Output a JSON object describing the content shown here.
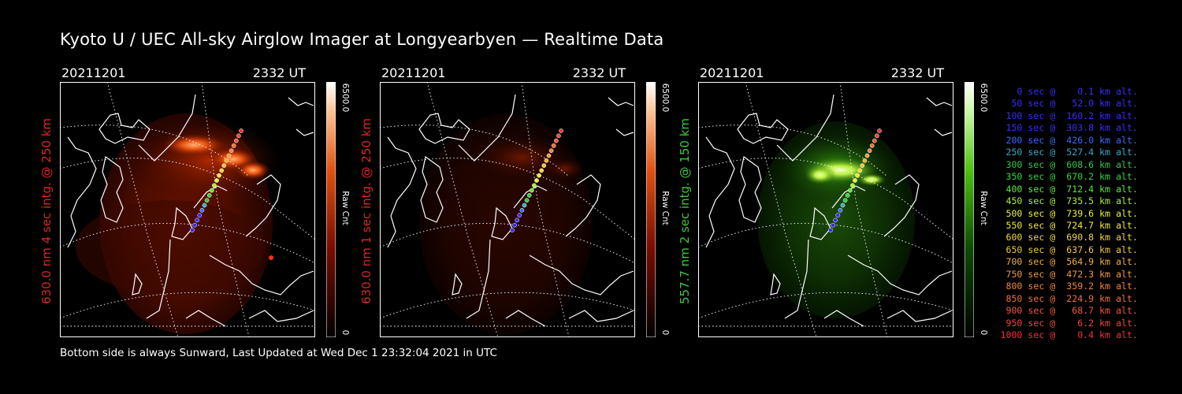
{
  "title": "Kyoto U / UEC All-sky Airglow Imager at Longyearbyen — Realtime Data",
  "footer": "Bottom side is always Sunward, Last Updated at Wed Dec  1 23:32:04 2021 in UTC",
  "panels": [
    {
      "date": "20211201",
      "time": "2332 UT",
      "ylabel": "630.0 nm 4 sec intg. @ 250 km",
      "label_color": "#d8281e",
      "cbar_max": "6500.0",
      "cbar_unit": "Raw Cnt",
      "cbar_min": "0",
      "scheme": "red"
    },
    {
      "date": "20211201",
      "time": "2332 UT",
      "ylabel": "630.0 nm 1 sec intg. @ 250 km",
      "label_color": "#d8281e",
      "cbar_max": "6500.0",
      "cbar_unit": "Raw Cnt",
      "cbar_min": "0",
      "scheme": "darkred"
    },
    {
      "date": "20211201",
      "time": "2332 UT",
      "ylabel": "557.7 nm 2 sec intg. @ 150 km",
      "label_color": "#3ec83e",
      "cbar_max": "6500.0",
      "cbar_unit": "Raw Cnt",
      "cbar_min": "0",
      "scheme": "green"
    }
  ],
  "legend": [
    {
      "text": "0 sec @    0.1 km alt.",
      "color": "#3a2cff"
    },
    {
      "text": "50 sec @   52.0 km alt.",
      "color": "#3a2cff"
    },
    {
      "text": "100 sec @  160.2 km alt.",
      "color": "#3a2cff"
    },
    {
      "text": "150 sec @  303.8 km alt.",
      "color": "#3a2cff"
    },
    {
      "text": "200 sec @  426.0 km alt.",
      "color": "#3a6cff"
    },
    {
      "text": "250 sec @  527.4 km alt.",
      "color": "#3aa8c8"
    },
    {
      "text": "300 sec @  608.6 km alt.",
      "color": "#2ec84a"
    },
    {
      "text": "350 sec @  670.2 km alt.",
      "color": "#2ed83a"
    },
    {
      "text": "400 sec @  712.4 km alt.",
      "color": "#5ee83a"
    },
    {
      "text": "450 sec @  735.5 km alt.",
      "color": "#a8f03a"
    },
    {
      "text": "500 sec @  739.6 km alt.",
      "color": "#e8f03a"
    },
    {
      "text": "550 sec @  724.7 km alt.",
      "color": "#f0e83a"
    },
    {
      "text": "600 sec @  690.8 km alt.",
      "color": "#f0d83a"
    },
    {
      "text": "650 sec @  637.6 km alt.",
      "color": "#f0c83a"
    },
    {
      "text": "700 sec @  564.9 km alt.",
      "color": "#f0b03a"
    },
    {
      "text": "750 sec @  472.3 km alt.",
      "color": "#f09a3a"
    },
    {
      "text": "800 sec @  359.2 km alt.",
      "color": "#f0863a"
    },
    {
      "text": "850 sec @  224.9 km alt.",
      "color": "#f0723a"
    },
    {
      "text": "900 sec @   68.7 km alt.",
      "color": "#f05a3a"
    },
    {
      "text": "950 sec @    6.2 km alt.",
      "color": "#f0463a"
    },
    {
      "text": "1000 sec @    0.4 km alt.",
      "color": "#f0323a"
    }
  ]
}
